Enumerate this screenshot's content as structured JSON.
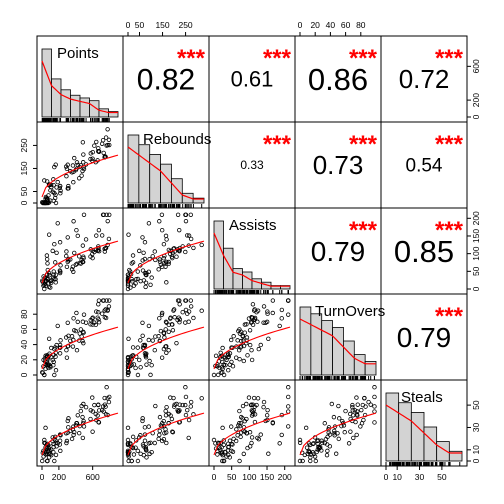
{
  "chart_data": {
    "type": "scatter",
    "title": "",
    "variables": [
      "Points",
      "Rebounds",
      "Assists",
      "TurnOvers",
      "Steals"
    ],
    "correlations": [
      {
        "row": 0,
        "col": 1,
        "value": "0.82",
        "stars": "***"
      },
      {
        "row": 0,
        "col": 2,
        "value": "0.61",
        "stars": "***"
      },
      {
        "row": 0,
        "col": 3,
        "value": "0.86",
        "stars": "***"
      },
      {
        "row": 0,
        "col": 4,
        "value": "0.72",
        "stars": "***"
      },
      {
        "row": 1,
        "col": 2,
        "value": "0.33",
        "stars": "***"
      },
      {
        "row": 1,
        "col": 3,
        "value": "0.73",
        "stars": "***"
      },
      {
        "row": 1,
        "col": 4,
        "value": "0.54",
        "stars": "***"
      },
      {
        "row": 2,
        "col": 3,
        "value": "0.79",
        "stars": "***"
      },
      {
        "row": 2,
        "col": 4,
        "value": "0.85",
        "stars": "***"
      },
      {
        "row": 3,
        "col": 4,
        "value": "0.79",
        "stars": "***"
      }
    ],
    "ranges": [
      [
        0,
        900
      ],
      [
        0,
        330
      ],
      [
        0,
        215
      ],
      [
        0,
        100
      ],
      [
        0,
        68
      ]
    ],
    "ticks": [
      [
        "0",
        "200",
        "600"
      ],
      [
        "0",
        "50",
        "150",
        "250"
      ],
      [
        "0",
        "50",
        "100",
        "150",
        "200"
      ],
      [
        "0",
        "20",
        "40",
        "60",
        "80"
      ],
      [
        "0",
        "10",
        "30",
        "50"
      ]
    ],
    "histograms": [
      [
        25,
        14,
        10,
        8,
        7,
        6,
        3,
        2
      ],
      [
        14,
        12,
        10,
        8,
        5,
        2,
        1
      ],
      [
        20,
        12,
        6,
        5,
        3,
        2,
        1,
        1
      ],
      [
        10,
        9,
        8,
        7,
        5,
        3,
        2
      ],
      [
        14,
        12,
        10,
        7,
        4,
        2
      ]
    ]
  },
  "labels": {
    "Points": "Points",
    "Rebounds": "Rebounds",
    "Assists": "Assists",
    "TurnOvers": "TurnOvers",
    "Steals": "Steals"
  }
}
